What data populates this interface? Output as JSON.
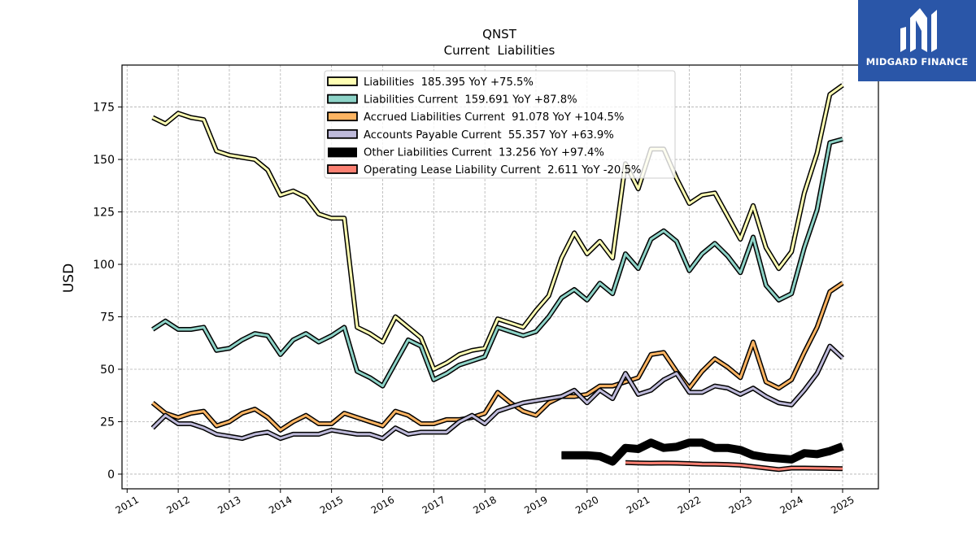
{
  "brand": {
    "name": "MIDGARD FINANCE",
    "color": "#2a56a8"
  },
  "chart_data": {
    "type": "line",
    "title": "QNST",
    "subtitle": "Current  Liabilities",
    "ylabel": "USD",
    "xlabel": "",
    "xlim": [
      2010.9,
      2025.7
    ],
    "ylim": [
      -7,
      195
    ],
    "yticks": [
      0,
      25,
      50,
      75,
      100,
      125,
      150,
      175
    ],
    "xticks": [
      "2011",
      "2012",
      "2013",
      "2014",
      "2015",
      "2016",
      "2017",
      "2018",
      "2019",
      "2020",
      "2021",
      "2022",
      "2023",
      "2024",
      "2025"
    ],
    "grid": true,
    "legend_position": "top-center",
    "series": [
      {
        "name": "Liabilities",
        "legend": "Liabilities  185.395 YoY +75.5%",
        "color": "#ffffb3",
        "width": 3,
        "x": [
          2011.5,
          2011.75,
          2012.0,
          2012.25,
          2012.5,
          2012.75,
          2013.0,
          2013.25,
          2013.5,
          2013.75,
          2014.0,
          2014.25,
          2014.5,
          2014.75,
          2015.0,
          2015.25,
          2015.5,
          2015.75,
          2016.0,
          2016.25,
          2016.5,
          2016.75,
          2017.0,
          2017.25,
          2017.5,
          2017.75,
          2018.0,
          2018.25,
          2018.5,
          2018.75,
          2019.0,
          2019.25,
          2019.5,
          2019.75,
          2020.0,
          2020.25,
          2020.5,
          2020.75,
          2021.0,
          2021.25,
          2021.5,
          2021.75,
          2022.0,
          2022.25,
          2022.5,
          2022.75,
          2023.0,
          2023.25,
          2023.5,
          2023.75,
          2024.0,
          2024.25,
          2024.5,
          2024.75,
          2025.0
        ],
        "y": [
          170,
          167,
          172,
          170,
          169,
          154,
          152,
          151,
          150,
          145,
          133,
          135,
          132,
          124,
          122,
          122,
          70,
          67,
          63,
          75,
          70,
          65,
          50,
          53,
          57,
          59,
          60,
          74,
          72,
          70,
          78,
          85,
          103,
          115,
          105,
          111,
          103,
          148,
          136,
          155,
          155,
          141,
          129,
          133,
          134,
          123,
          112,
          128,
          108,
          98,
          106,
          134,
          153,
          181,
          185.395
        ]
      },
      {
        "name": "Liabilities Current",
        "legend": "Liabilities Current  159.691 YoY +87.8%",
        "color": "#8dd3c7",
        "width": 3,
        "x": [
          2011.5,
          2011.75,
          2012.0,
          2012.25,
          2012.5,
          2012.75,
          2013.0,
          2013.25,
          2013.5,
          2013.75,
          2014.0,
          2014.25,
          2014.5,
          2014.75,
          2015.0,
          2015.25,
          2015.5,
          2015.75,
          2016.0,
          2016.25,
          2016.5,
          2016.75,
          2017.0,
          2017.25,
          2017.5,
          2017.75,
          2018.0,
          2018.25,
          2018.5,
          2018.75,
          2019.0,
          2019.25,
          2019.5,
          2019.75,
          2020.0,
          2020.25,
          2020.5,
          2020.75,
          2021.0,
          2021.25,
          2021.5,
          2021.75,
          2022.0,
          2022.25,
          2022.5,
          2022.75,
          2023.0,
          2023.25,
          2023.5,
          2023.75,
          2024.0,
          2024.25,
          2024.5,
          2024.75,
          2025.0
        ],
        "y": [
          69,
          73,
          69,
          69,
          70,
          59,
          60,
          64,
          67,
          66,
          57,
          64,
          67,
          63,
          66,
          70,
          49,
          46,
          42,
          53,
          64,
          61,
          45,
          48,
          52,
          54,
          56,
          70,
          68,
          66,
          68,
          75,
          84,
          88,
          83,
          91,
          86,
          105,
          98,
          112,
          116,
          111,
          97,
          105,
          110,
          104,
          96,
          113,
          90,
          83,
          86,
          108,
          126,
          158,
          159.691
        ]
      },
      {
        "name": "Accrued Liabilities Current",
        "legend": "Accrued Liabilities Current  91.078 YoY +104.5%",
        "color": "#fdb462",
        "width": 3,
        "x": [
          2011.5,
          2011.75,
          2012.0,
          2012.25,
          2012.5,
          2012.75,
          2013.0,
          2013.25,
          2013.5,
          2013.75,
          2014.0,
          2014.25,
          2014.5,
          2014.75,
          2015.0,
          2015.25,
          2015.5,
          2015.75,
          2016.0,
          2016.25,
          2016.5,
          2016.75,
          2017.0,
          2017.25,
          2017.5,
          2017.75,
          2018.0,
          2018.25,
          2018.5,
          2018.75,
          2019.0,
          2019.25,
          2019.5,
          2019.75,
          2020.0,
          2020.25,
          2020.5,
          2020.75,
          2021.0,
          2021.25,
          2021.5,
          2021.75,
          2022.0,
          2022.25,
          2022.5,
          2022.75,
          2023.0,
          2023.25,
          2023.5,
          2023.75,
          2024.0,
          2024.25,
          2024.5,
          2024.75,
          2025.0
        ],
        "y": [
          34,
          29,
          27,
          29,
          30,
          23,
          25,
          29,
          31,
          27,
          21,
          25,
          28,
          24,
          24,
          29,
          27,
          25,
          23,
          30,
          28,
          24,
          24,
          26,
          26,
          27,
          29,
          39,
          34,
          30,
          28,
          34,
          37,
          37,
          38,
          42,
          42,
          44,
          46,
          57,
          58,
          49,
          41,
          49,
          55,
          51,
          46,
          63,
          44,
          41,
          45,
          58,
          70,
          87,
          91.078
        ]
      },
      {
        "name": "Accounts Payable Current",
        "legend": "Accounts Payable Current  55.357 YoY +63.9%",
        "color": "#bebada",
        "width": 3,
        "x": [
          2011.5,
          2011.75,
          2012.0,
          2012.25,
          2012.5,
          2012.75,
          2013.0,
          2013.25,
          2013.5,
          2013.75,
          2014.0,
          2014.25,
          2014.5,
          2014.75,
          2015.0,
          2015.25,
          2015.5,
          2015.75,
          2016.0,
          2016.25,
          2016.5,
          2016.75,
          2017.0,
          2017.25,
          2017.5,
          2017.75,
          2018.0,
          2018.25,
          2018.5,
          2018.75,
          2019.0,
          2019.25,
          2019.5,
          2019.75,
          2020.0,
          2020.25,
          2020.5,
          2020.75,
          2021.0,
          2021.25,
          2021.5,
          2021.75,
          2022.0,
          2022.25,
          2022.5,
          2022.75,
          2023.0,
          2023.25,
          2023.5,
          2023.75,
          2024.0,
          2024.25,
          2024.5,
          2024.75,
          2025.0
        ],
        "y": [
          22,
          28,
          24,
          24,
          22,
          19,
          18,
          17,
          19,
          20,
          17,
          19,
          19,
          19,
          21,
          20,
          19,
          19,
          17,
          22,
          19,
          20,
          20,
          20,
          25,
          28,
          24,
          30,
          32,
          34,
          35,
          36,
          37,
          40,
          34,
          40,
          36,
          48,
          38,
          40,
          45,
          48,
          39,
          39,
          42,
          41,
          38,
          41,
          37,
          34,
          33,
          40,
          48,
          61,
          55.357
        ]
      },
      {
        "name": "Other Liabilities Current",
        "legend": "Other Liabilities Current  13.256 YoY +97.4%",
        "color": "#000000",
        "width": 7,
        "x": [
          2019.5,
          2019.75,
          2020.0,
          2020.25,
          2020.5,
          2020.75,
          2021.0,
          2021.25,
          2021.5,
          2021.75,
          2022.0,
          2022.25,
          2022.5,
          2022.75,
          2023.0,
          2023.25,
          2023.5,
          2023.75,
          2024.0,
          2024.25,
          2024.5,
          2024.75,
          2025.0
        ],
        "y": [
          9,
          9,
          9,
          8.5,
          6,
          12.5,
          12,
          15,
          12.5,
          13,
          15,
          15,
          12.5,
          12.5,
          11.5,
          9,
          8,
          7.5,
          7,
          10,
          9.5,
          11,
          13.256
        ]
      },
      {
        "name": "Operating Lease Liability Current",
        "legend": "Operating Lease Liability Current  2.611 YoY -20.5%",
        "color": "#fb8072",
        "width": 3,
        "x": [
          2020.75,
          2021.0,
          2021.25,
          2021.5,
          2021.75,
          2022.0,
          2022.25,
          2022.5,
          2022.75,
          2023.0,
          2023.25,
          2023.5,
          2023.75,
          2024.0,
          2024.25,
          2024.5,
          2024.75,
          2025.0
        ],
        "y": [
          5.5,
          5.3,
          5.2,
          5.3,
          5.2,
          5.0,
          4.8,
          4.7,
          4.6,
          4.3,
          3.6,
          2.9,
          2.2,
          2.9,
          2.9,
          2.8,
          2.7,
          2.611
        ]
      }
    ]
  }
}
